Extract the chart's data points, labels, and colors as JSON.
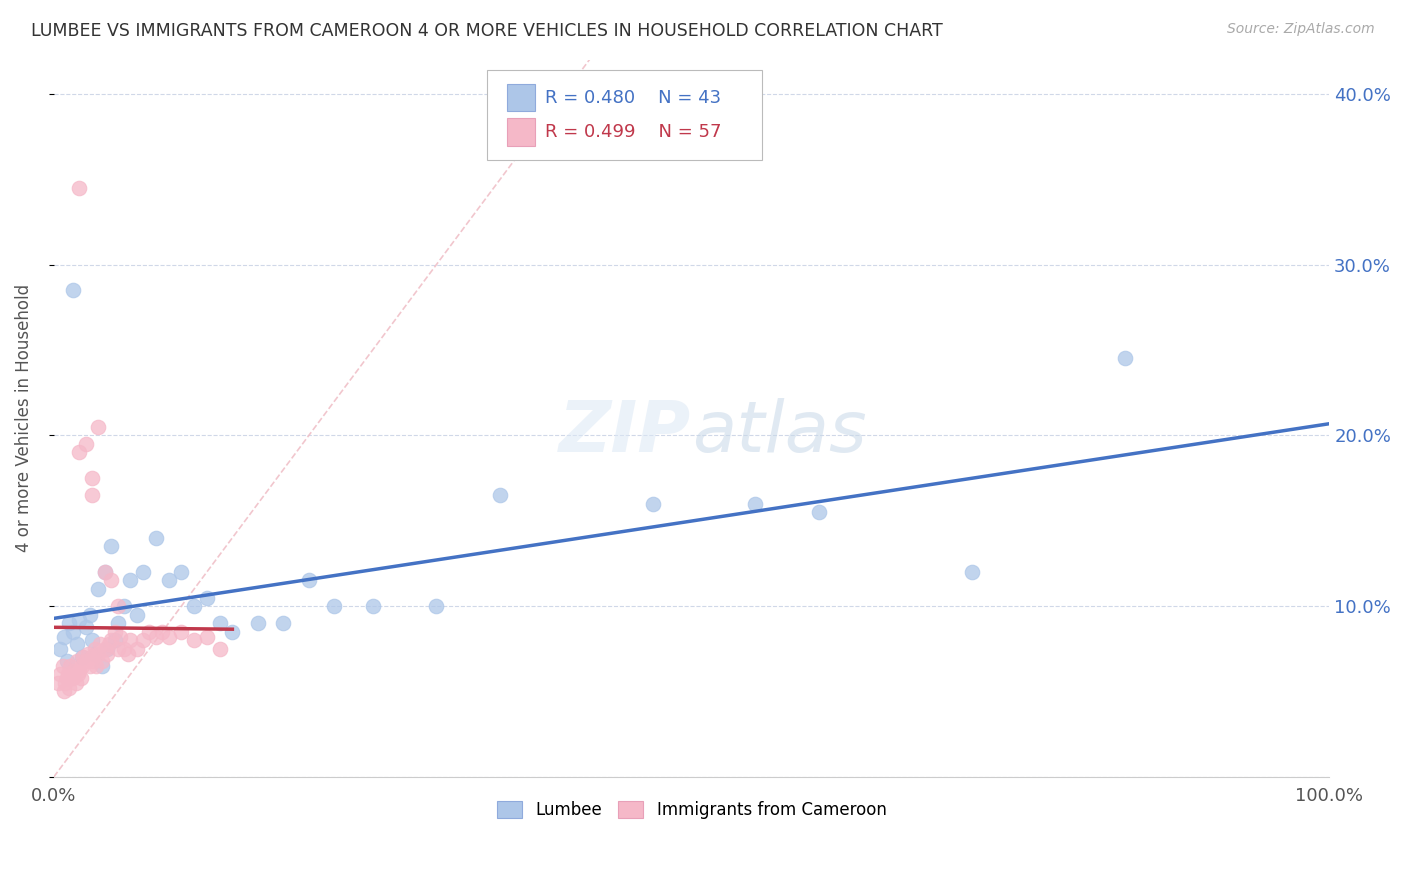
{
  "title": "LUMBEE VS IMMIGRANTS FROM CAMEROON 4 OR MORE VEHICLES IN HOUSEHOLD CORRELATION CHART",
  "source": "Source: ZipAtlas.com",
  "ylabel": "4 or more Vehicles in Household",
  "legend_label_1": "Lumbee",
  "legend_label_2": "Immigrants from Cameroon",
  "R1": 0.48,
  "N1": 43,
  "R2": 0.499,
  "N2": 57,
  "color1": "#adc6e8",
  "color2": "#f5b8c8",
  "line_color1": "#4472c4",
  "line_color2": "#c0384b",
  "diag_color": "#f0c0c8",
  "xlim": [
    0,
    1.0
  ],
  "ylim": [
    0,
    0.42
  ],
  "xtick_vals": [
    0.0,
    0.2,
    0.4,
    0.6,
    0.8,
    1.0
  ],
  "xtick_labels": [
    "0.0%",
    "",
    "",
    "",
    "",
    "100.0%"
  ],
  "ytick_vals": [
    0.0,
    0.1,
    0.2,
    0.3,
    0.4
  ],
  "ytick_labels_right": [
    "",
    "10.0%",
    "20.0%",
    "30.0%",
    "40.0%"
  ],
  "lumbee_x": [
    0.005,
    0.008,
    0.01,
    0.012,
    0.015,
    0.018,
    0.02,
    0.022,
    0.025,
    0.028,
    0.03,
    0.032,
    0.035,
    0.038,
    0.04,
    0.042,
    0.045,
    0.048,
    0.05,
    0.055,
    0.06,
    0.065,
    0.07,
    0.08,
    0.09,
    0.1,
    0.11,
    0.12,
    0.13,
    0.14,
    0.16,
    0.18,
    0.2,
    0.22,
    0.25,
    0.3,
    0.35,
    0.47,
    0.55,
    0.6,
    0.72,
    0.84,
    0.015
  ],
  "lumbee_y": [
    0.075,
    0.082,
    0.068,
    0.09,
    0.085,
    0.078,
    0.092,
    0.07,
    0.088,
    0.095,
    0.08,
    0.072,
    0.11,
    0.065,
    0.12,
    0.075,
    0.135,
    0.08,
    0.09,
    0.1,
    0.115,
    0.095,
    0.12,
    0.14,
    0.115,
    0.12,
    0.1,
    0.105,
    0.09,
    0.085,
    0.09,
    0.09,
    0.115,
    0.1,
    0.1,
    0.1,
    0.165,
    0.16,
    0.16,
    0.155,
    0.12,
    0.245,
    0.285
  ],
  "cameroon_x": [
    0.003,
    0.005,
    0.007,
    0.008,
    0.009,
    0.01,
    0.011,
    0.012,
    0.013,
    0.015,
    0.016,
    0.017,
    0.018,
    0.019,
    0.02,
    0.021,
    0.022,
    0.023,
    0.025,
    0.027,
    0.028,
    0.03,
    0.031,
    0.032,
    0.033,
    0.035,
    0.036,
    0.038,
    0.04,
    0.042,
    0.043,
    0.045,
    0.048,
    0.05,
    0.052,
    0.055,
    0.058,
    0.06,
    0.065,
    0.07,
    0.075,
    0.08,
    0.085,
    0.09,
    0.1,
    0.11,
    0.12,
    0.13,
    0.02,
    0.025,
    0.03,
    0.035,
    0.04,
    0.045,
    0.05,
    0.03,
    0.02
  ],
  "cameroon_y": [
    0.055,
    0.06,
    0.065,
    0.05,
    0.055,
    0.058,
    0.06,
    0.052,
    0.065,
    0.058,
    0.062,
    0.055,
    0.068,
    0.06,
    0.062,
    0.058,
    0.065,
    0.07,
    0.068,
    0.072,
    0.065,
    0.07,
    0.068,
    0.075,
    0.065,
    0.072,
    0.078,
    0.068,
    0.075,
    0.072,
    0.078,
    0.08,
    0.085,
    0.075,
    0.082,
    0.075,
    0.072,
    0.08,
    0.075,
    0.08,
    0.085,
    0.082,
    0.085,
    0.082,
    0.085,
    0.08,
    0.082,
    0.075,
    0.19,
    0.195,
    0.175,
    0.205,
    0.12,
    0.115,
    0.1,
    0.165,
    0.345
  ]
}
